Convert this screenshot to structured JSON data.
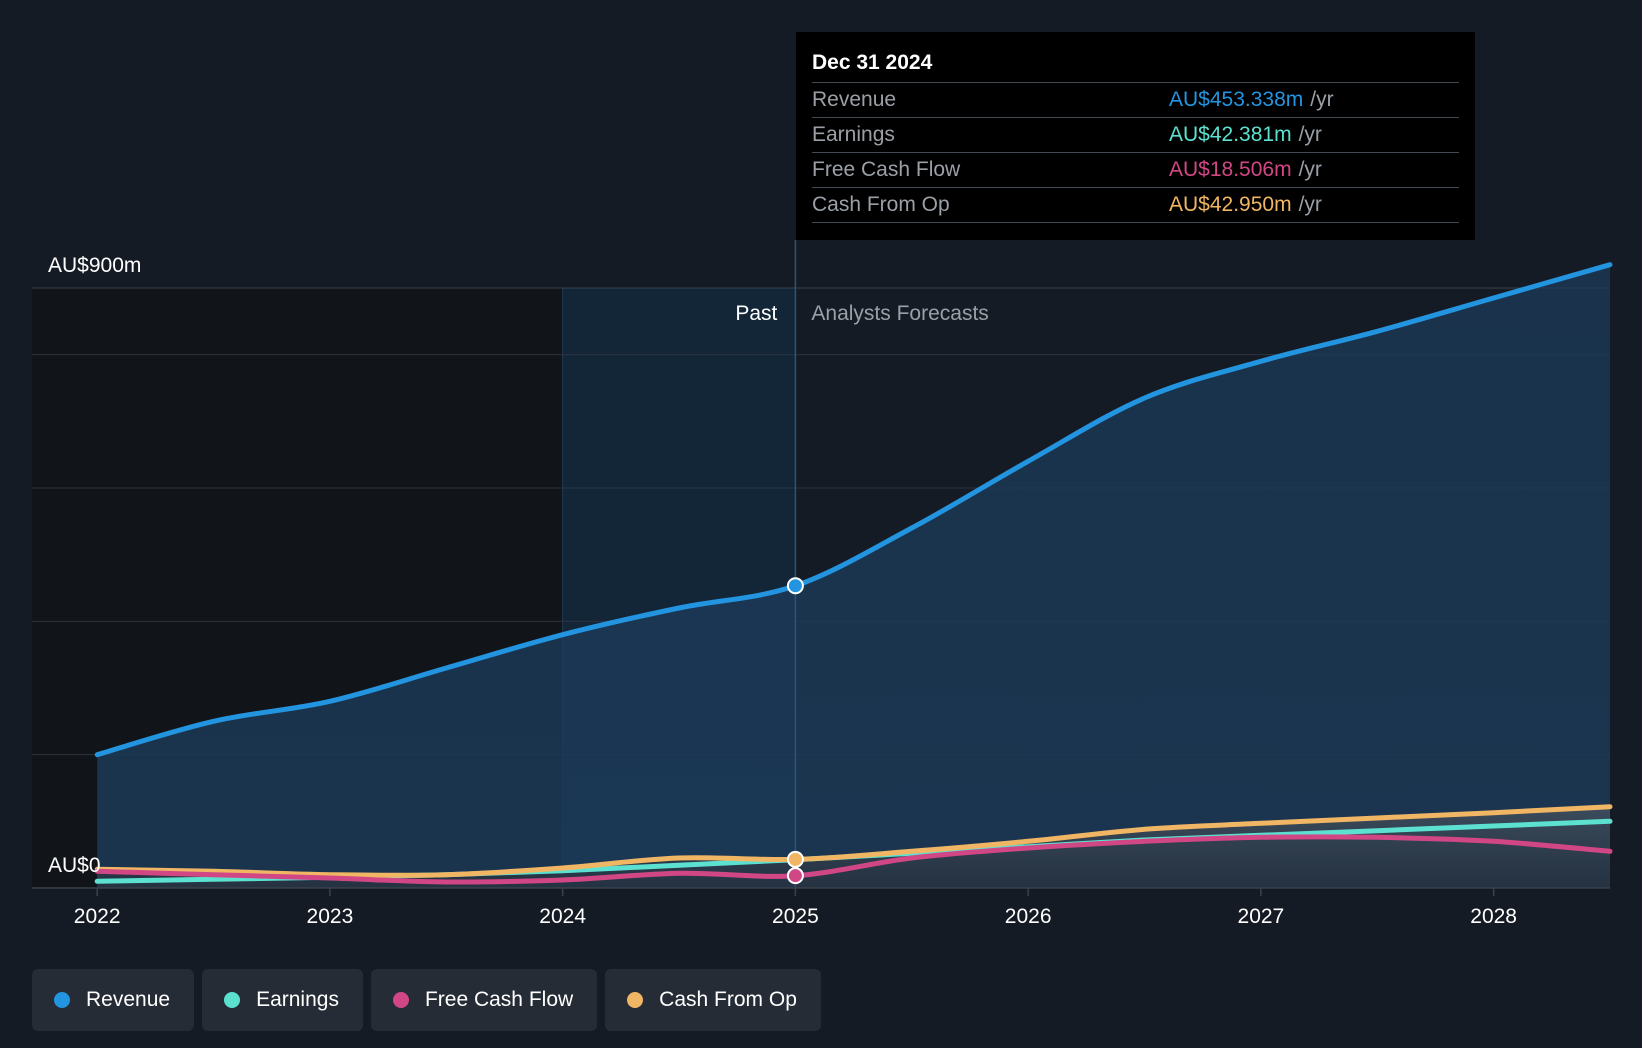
{
  "chart_data": {
    "type": "area",
    "currency_unit": "m",
    "y_labels": {
      "top": "AU$900m",
      "bottom": "AU$0"
    },
    "ylim": [
      0,
      900
    ],
    "xlim": [
      2021.72,
      2028.5
    ],
    "x_ticks": [
      "2022",
      "2023",
      "2024",
      "2025",
      "2026",
      "2027",
      "2028"
    ],
    "grid": true,
    "past_label": "Past",
    "forecast_label": "Analysts Forecasts",
    "divider_x": 2025.0,
    "highlight_start_x": 2024.0,
    "series": [
      {
        "name": "Revenue",
        "color": "#2394df",
        "points": [
          [
            2022.0,
            200
          ],
          [
            2022.5,
            250
          ],
          [
            2023.0,
            280
          ],
          [
            2023.5,
            330
          ],
          [
            2024.0,
            380
          ],
          [
            2024.5,
            420
          ],
          [
            2025.0,
            453.338
          ],
          [
            2025.5,
            540
          ],
          [
            2026.0,
            640
          ],
          [
            2026.5,
            735
          ],
          [
            2027.0,
            790
          ],
          [
            2027.5,
            835
          ],
          [
            2028.0,
            885
          ],
          [
            2028.5,
            935
          ]
        ]
      },
      {
        "name": "Earnings",
        "color": "#5ce1d1",
        "points": [
          [
            2022.0,
            10
          ],
          [
            2022.5,
            13
          ],
          [
            2023.0,
            16
          ],
          [
            2023.5,
            20
          ],
          [
            2024.0,
            26
          ],
          [
            2024.5,
            34
          ],
          [
            2025.0,
            42.381
          ],
          [
            2025.5,
            52
          ],
          [
            2026.0,
            62
          ],
          [
            2026.5,
            72
          ],
          [
            2027.0,
            79
          ],
          [
            2027.5,
            86
          ],
          [
            2028.0,
            93
          ],
          [
            2028.5,
            100
          ]
        ]
      },
      {
        "name": "Free Cash Flow",
        "color": "#d14785",
        "points": [
          [
            2022.0,
            25
          ],
          [
            2022.5,
            20
          ],
          [
            2023.0,
            15
          ],
          [
            2023.5,
            9
          ],
          [
            2024.0,
            12
          ],
          [
            2024.5,
            22
          ],
          [
            2025.0,
            18.506
          ],
          [
            2025.5,
            45
          ],
          [
            2026.0,
            60
          ],
          [
            2026.5,
            70
          ],
          [
            2027.0,
            76
          ],
          [
            2027.5,
            76
          ],
          [
            2028.0,
            70
          ],
          [
            2028.5,
            55
          ]
        ]
      },
      {
        "name": "Cash From Op",
        "color": "#f0b664",
        "points": [
          [
            2022.0,
            28
          ],
          [
            2022.5,
            25
          ],
          [
            2023.0,
            20
          ],
          [
            2023.5,
            20
          ],
          [
            2024.0,
            30
          ],
          [
            2024.5,
            45
          ],
          [
            2025.0,
            42.95
          ],
          [
            2025.5,
            55
          ],
          [
            2026.0,
            70
          ],
          [
            2026.5,
            88
          ],
          [
            2027.0,
            97
          ],
          [
            2027.5,
            105
          ],
          [
            2028.0,
            113
          ],
          [
            2028.5,
            122
          ]
        ]
      }
    ]
  },
  "tooltip": {
    "date": "Dec 31 2024",
    "unit": "/yr",
    "rows": [
      {
        "label": "Revenue",
        "value": "AU$453.338m",
        "color": "#2394df"
      },
      {
        "label": "Earnings",
        "value": "AU$42.381m",
        "color": "#5ce1d1"
      },
      {
        "label": "Free Cash Flow",
        "value": "AU$18.506m",
        "color": "#d14785"
      },
      {
        "label": "Cash From Op",
        "value": "AU$42.950m",
        "color": "#f0b664"
      }
    ]
  },
  "legend": {
    "items": [
      {
        "label": "Revenue",
        "color": "#2394df"
      },
      {
        "label": "Earnings",
        "color": "#5ce1d1"
      },
      {
        "label": "Free Cash Flow",
        "color": "#d14785"
      },
      {
        "label": "Cash From Op",
        "color": "#f0b664"
      }
    ]
  }
}
